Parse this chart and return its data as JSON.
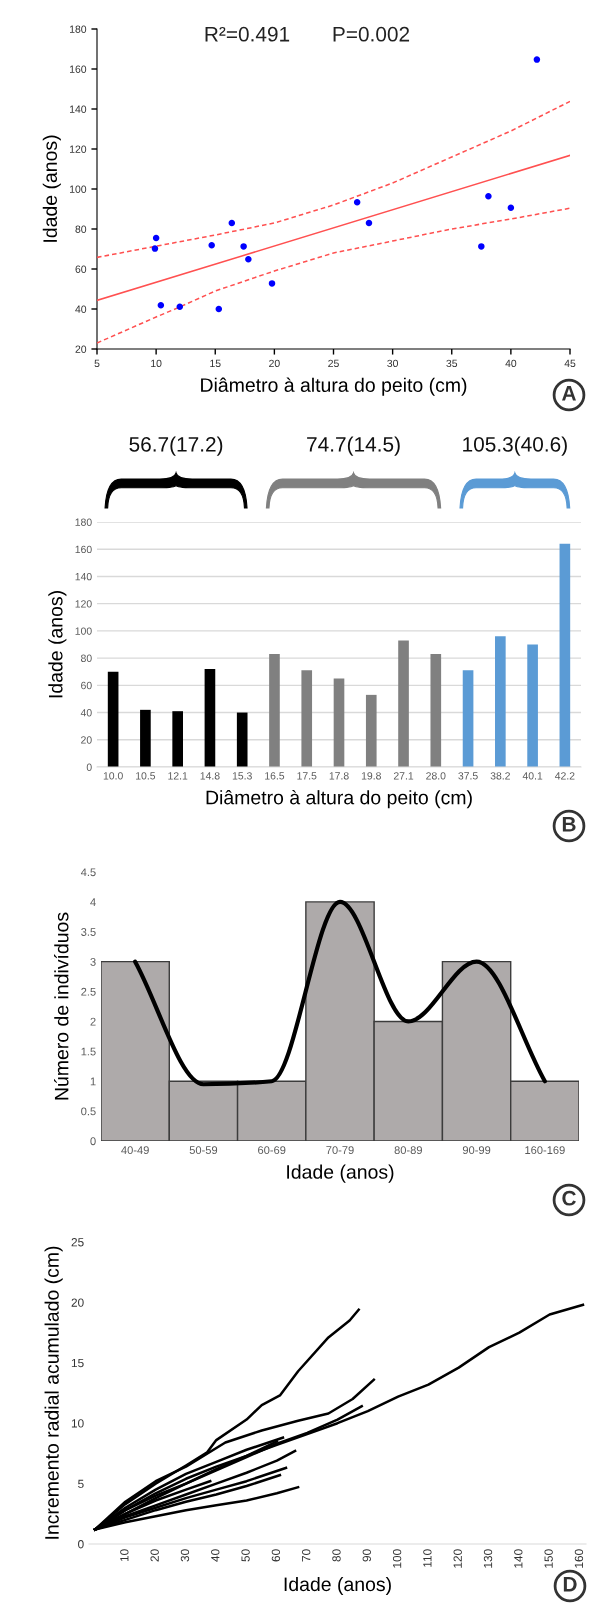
{
  "chart_data": [
    {
      "type": "scatter",
      "xlabel": "Diâmetro à altura do peito (cm)",
      "ylabel": "Idade (anos)",
      "annotations": [
        "R²=0.491",
        "P=0.002",
        "A"
      ],
      "xlim": [
        5,
        45
      ],
      "xticks": [
        5,
        10,
        15,
        20,
        25,
        30,
        35,
        40,
        45
      ],
      "ylim": [
        20,
        180
      ],
      "yticks": [
        20,
        40,
        60,
        80,
        100,
        120,
        140,
        160,
        180
      ],
      "series": [
        {
          "type": "scatter",
          "color": "#0000ff",
          "marker": "circle",
          "x": [
            10.0,
            9.9,
            10.4,
            12.0,
            14.7,
            15.3,
            16.4,
            17.4,
            17.8,
            19.8,
            27.0,
            28.0,
            37.5,
            38.1,
            40.0,
            42.2
          ],
          "values": [
            75.5,
            70.2,
            41.9,
            41.1,
            71.9,
            40,
            83,
            71.3,
            64.9,
            52.8,
            93.4,
            83,
            71.3,
            96.4,
            90.6,
            164.7
          ]
        },
        {
          "type": "line",
          "color": "#ff5050",
          "line_style": "solid",
          "x": [
            5,
            45
          ],
          "values": [
            44.3,
            116.8
          ]
        },
        {
          "type": "line",
          "color": "#ff5050",
          "line_style": "dashed",
          "x": [
            5,
            15,
            20,
            25,
            30,
            35,
            40,
            45
          ],
          "values": [
            65.8,
            77,
            83,
            92,
            103,
            116,
            129,
            143.8
          ]
        },
        {
          "type": "line",
          "color": "#ff5050",
          "line_style": "dashed",
          "x": [
            5,
            10,
            12,
            15,
            20,
            25,
            30,
            35,
            40,
            45
          ],
          "values": [
            23,
            36,
            41,
            49,
            59,
            68,
            74,
            80,
            85,
            90.4
          ]
        }
      ]
    },
    {
      "type": "bar",
      "xlabel": "Diâmetro à altura do peito (cm)",
      "ylabel": "Idade (anos)",
      "annotations": [
        "56.7(17.2)",
        "74.7(14.5)",
        "105.3(40.6)",
        "B"
      ],
      "grid": "y",
      "ylim": [
        0,
        180
      ],
      "yticks": [
        0,
        20,
        40,
        60,
        80,
        100,
        120,
        140,
        160,
        180
      ],
      "categories": [
        "10.0",
        "10.5",
        "12.1",
        "14.8",
        "15.3",
        "16.5",
        "17.5",
        "17.8",
        "19.8",
        "27.1",
        "28.0",
        "37.5",
        "38.2",
        "40.1",
        "42.2"
      ],
      "series": [
        {
          "values": [
            70,
            42,
            41,
            72,
            40,
            83,
            71,
            65,
            53,
            93,
            83,
            71,
            96,
            90,
            164
          ],
          "colors": [
            "#000000",
            "#000000",
            "#000000",
            "#000000",
            "#000000",
            "#808080",
            "#808080",
            "#808080",
            "#808080",
            "#808080",
            "#808080",
            "#5b9bd5",
            "#5b9bd5",
            "#5b9bd5",
            "#5b9bd5"
          ]
        }
      ]
    },
    {
      "type": "bar",
      "xlabel": "Idade (anos)",
      "ylabel": "Número de indivíduos",
      "annotations": [
        "C"
      ],
      "ylim": [
        0,
        4.5
      ],
      "yticks": [
        0,
        0.5,
        1,
        1.5,
        2,
        2.5,
        3,
        3.5,
        4,
        4.5
      ],
      "categories": [
        "40-49",
        "50-59",
        "60-69",
        "70-79",
        "80-89",
        "90-99",
        "160-169"
      ],
      "series": [
        {
          "type": "bar",
          "color": "#aeaaaa",
          "values": [
            3,
            1,
            1,
            4,
            2,
            3,
            1
          ]
        },
        {
          "type": "line",
          "color": "#000000",
          "values": [
            3,
            0.95,
            1.0,
            4,
            2,
            3,
            1
          ]
        }
      ]
    },
    {
      "type": "line",
      "xlabel": "Idade (anos)",
      "ylabel": "Incremento radial acumulado (cm)",
      "annotations": [
        "D"
      ],
      "xlim": [
        -2,
        162
      ],
      "xticks": [
        10,
        20,
        30,
        40,
        50,
        60,
        70,
        80,
        90,
        100,
        110,
        120,
        130,
        140,
        150,
        160
      ],
      "ylim": [
        0,
        25
      ],
      "yticks": [
        0,
        5,
        10,
        15,
        20,
        25
      ],
      "series": [
        {
          "color": "#000000",
          "x": [
            0,
            10,
            20,
            30,
            40,
            50,
            60,
            70,
            80,
            90,
            100,
            110,
            120,
            130,
            140,
            150,
            161
          ],
          "values": [
            1.2,
            2.8,
            4.2,
            5.4,
            6.4,
            7.3,
            8.2,
            9.1,
            10.0,
            11.0,
            12.2,
            13.2,
            14.6,
            16.3,
            17.5,
            19.0,
            19.8
          ]
        },
        {
          "color": "#000000",
          "x": [
            0,
            10,
            20,
            30,
            37,
            40,
            50,
            55,
            61,
            67,
            77,
            84,
            87
          ],
          "values": [
            1.2,
            3.3,
            5.0,
            6.5,
            7.6,
            8.6,
            10.3,
            11.5,
            12.3,
            14.3,
            17.1,
            18.5,
            19.4
          ]
        },
        {
          "color": "#000000",
          "x": [
            0,
            10,
            20,
            30,
            43,
            55,
            67,
            77,
            85,
            92
          ],
          "values": [
            1.2,
            3.5,
            5.2,
            6.4,
            8.4,
            9.4,
            10.2,
            10.8,
            12.0,
            13.6
          ]
        },
        {
          "color": "#000000",
          "x": [
            0,
            10,
            20,
            30,
            40,
            50,
            60,
            70,
            80,
            88
          ],
          "values": [
            1.2,
            2.8,
            4.0,
            5.0,
            6.1,
            7.2,
            8.3,
            9.2,
            10.3,
            11.4
          ]
        },
        {
          "color": "#000000",
          "x": [
            0,
            10,
            20,
            30,
            40,
            50,
            60
          ],
          "values": [
            1.2,
            2.5,
            3.8,
            5.0,
            6.2,
            7.3,
            8.5
          ]
        },
        {
          "color": "#000000",
          "x": [
            0,
            10,
            20,
            30,
            40,
            50,
            60,
            66
          ],
          "values": [
            1.2,
            2.3,
            3.2,
            4.1,
            5.0,
            5.9,
            6.9,
            7.7
          ]
        },
        {
          "color": "#000000",
          "x": [
            0,
            10,
            20,
            30,
            40,
            50,
            63
          ],
          "values": [
            1.2,
            2.2,
            3.0,
            3.8,
            4.5,
            5.2,
            6.3
          ]
        },
        {
          "color": "#000000",
          "x": [
            0,
            10,
            20,
            30,
            40,
            50,
            61
          ],
          "values": [
            1.2,
            2.0,
            2.8,
            3.5,
            4.1,
            4.8,
            5.7
          ]
        },
        {
          "color": "#000000",
          "x": [
            0,
            10,
            20,
            30,
            40,
            50,
            60,
            67
          ],
          "values": [
            1.2,
            1.8,
            2.3,
            2.8,
            3.2,
            3.6,
            4.2,
            4.7
          ]
        },
        {
          "color": "#000000",
          "x": [
            0,
            10,
            20,
            30,
            38
          ],
          "values": [
            1.2,
            2.5,
            3.6,
            4.5,
            5.2
          ]
        },
        {
          "color": "#000000",
          "x": [
            0,
            10,
            20,
            30,
            40,
            50,
            62
          ],
          "values": [
            1.2,
            3.0,
            4.5,
            5.8,
            6.8,
            7.8,
            8.8
          ]
        }
      ]
    }
  ]
}
